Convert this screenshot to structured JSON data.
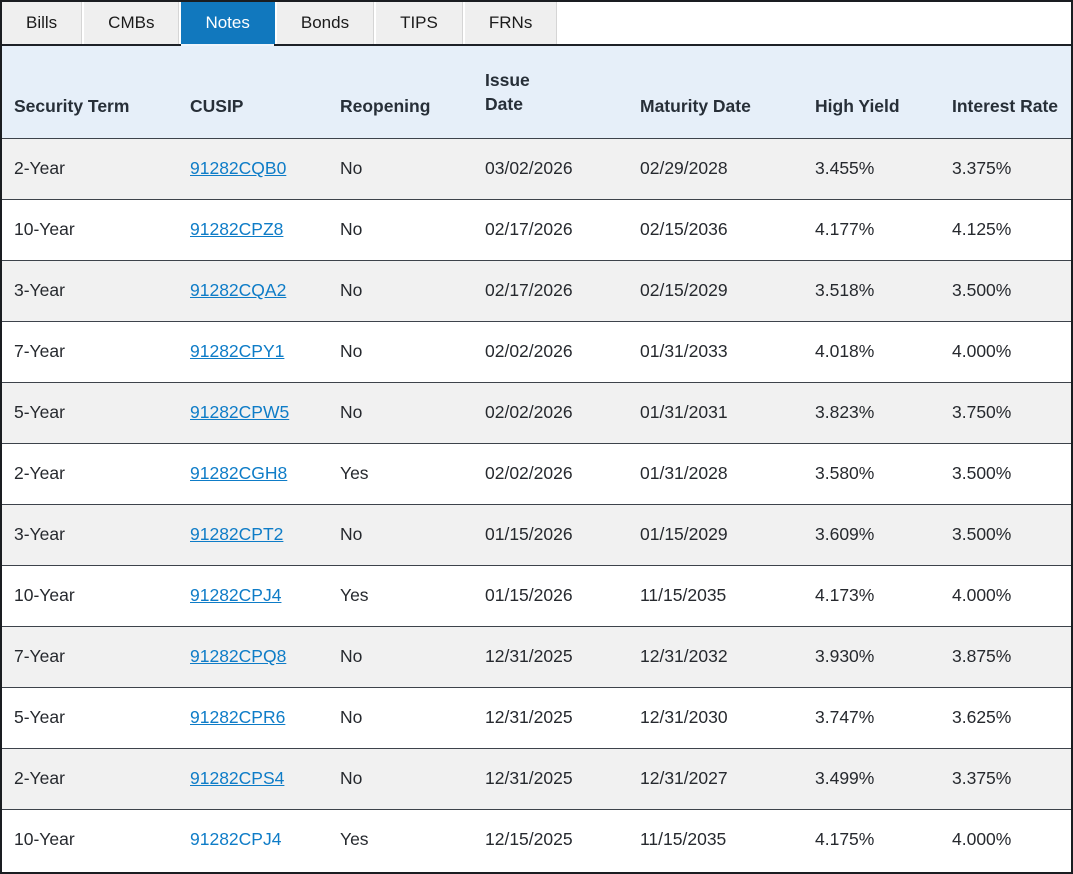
{
  "tabs": [
    {
      "label": "Bills",
      "active": false
    },
    {
      "label": "CMBs",
      "active": false
    },
    {
      "label": "Notes",
      "active": true
    },
    {
      "label": "Bonds",
      "active": false
    },
    {
      "label": "TIPS",
      "active": false
    },
    {
      "label": "FRNs",
      "active": false
    }
  ],
  "table": {
    "columns": [
      {
        "label": "Security Term"
      },
      {
        "label": "CUSIP"
      },
      {
        "label": "Reopening"
      },
      {
        "label": "Issue Date"
      },
      {
        "label": "Maturity Date"
      },
      {
        "label": "High Yield"
      },
      {
        "label": "Interest Rate"
      }
    ],
    "rows": [
      {
        "term": "2-Year",
        "cusip": "91282CQB0",
        "cusip_underlined": true,
        "reopening": "No",
        "issue_date": "03/02/2026",
        "maturity_date": "02/29/2028",
        "high_yield": "3.455%",
        "interest_rate": "3.375%"
      },
      {
        "term": "10-Year",
        "cusip": "91282CPZ8",
        "cusip_underlined": true,
        "reopening": "No",
        "issue_date": "02/17/2026",
        "maturity_date": "02/15/2036",
        "high_yield": "4.177%",
        "interest_rate": "4.125%"
      },
      {
        "term": "3-Year",
        "cusip": "91282CQA2",
        "cusip_underlined": true,
        "reopening": "No",
        "issue_date": "02/17/2026",
        "maturity_date": "02/15/2029",
        "high_yield": "3.518%",
        "interest_rate": "3.500%"
      },
      {
        "term": "7-Year",
        "cusip": "91282CPY1",
        "cusip_underlined": true,
        "reopening": "No",
        "issue_date": "02/02/2026",
        "maturity_date": "01/31/2033",
        "high_yield": "4.018%",
        "interest_rate": "4.000%"
      },
      {
        "term": "5-Year",
        "cusip": "91282CPW5",
        "cusip_underlined": true,
        "reopening": "No",
        "issue_date": "02/02/2026",
        "maturity_date": "01/31/2031",
        "high_yield": "3.823%",
        "interest_rate": "3.750%"
      },
      {
        "term": "2-Year",
        "cusip": "91282CGH8",
        "cusip_underlined": true,
        "reopening": "Yes",
        "issue_date": "02/02/2026",
        "maturity_date": "01/31/2028",
        "high_yield": "3.580%",
        "interest_rate": "3.500%"
      },
      {
        "term": "3-Year",
        "cusip": "91282CPT2",
        "cusip_underlined": true,
        "reopening": "No",
        "issue_date": "01/15/2026",
        "maturity_date": "01/15/2029",
        "high_yield": "3.609%",
        "interest_rate": "3.500%"
      },
      {
        "term": "10-Year",
        "cusip": "91282CPJ4",
        "cusip_underlined": true,
        "reopening": "Yes",
        "issue_date": "01/15/2026",
        "maturity_date": "11/15/2035",
        "high_yield": "4.173%",
        "interest_rate": "4.000%"
      },
      {
        "term": "7-Year",
        "cusip": "91282CPQ8",
        "cusip_underlined": true,
        "reopening": "No",
        "issue_date": "12/31/2025",
        "maturity_date": "12/31/2032",
        "high_yield": "3.930%",
        "interest_rate": "3.875%"
      },
      {
        "term": "5-Year",
        "cusip": "91282CPR6",
        "cusip_underlined": true,
        "reopening": "No",
        "issue_date": "12/31/2025",
        "maturity_date": "12/31/2030",
        "high_yield": "3.747%",
        "interest_rate": "3.625%"
      },
      {
        "term": "2-Year",
        "cusip": "91282CPS4",
        "cusip_underlined": true,
        "reopening": "No",
        "issue_date": "12/31/2025",
        "maturity_date": "12/31/2027",
        "high_yield": "3.499%",
        "interest_rate": "3.375%"
      },
      {
        "term": "10-Year",
        "cusip": "91282CPJ4",
        "cusip_underlined": false,
        "reopening": "Yes",
        "issue_date": "12/15/2025",
        "maturity_date": "11/15/2035",
        "high_yield": "4.175%",
        "interest_rate": "4.000%"
      }
    ]
  },
  "colors": {
    "active_tab": "#1178be",
    "link": "#0e7cc7",
    "header_bg": "#e6eff9",
    "alt_row_bg": "#f1f1f1"
  }
}
